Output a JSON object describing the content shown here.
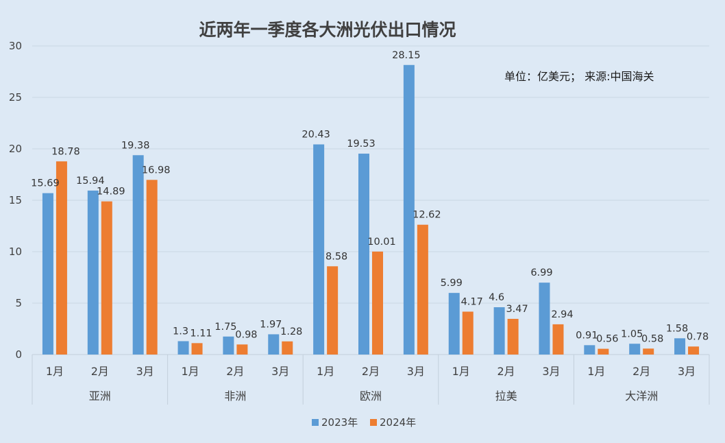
{
  "chart_data": {
    "type": "bar",
    "title": "近两年一季度各大洲光伏出口情况",
    "unit_note": "单位：亿美元；   来源:中国海关",
    "ylim": [
      0,
      30
    ],
    "yticks": [
      0,
      5,
      10,
      15,
      20,
      25,
      30
    ],
    "grid": true,
    "legend_position": "bottom",
    "groups": [
      "亚洲",
      "非洲",
      "欧洲",
      "拉美",
      "大洋洲"
    ],
    "months": [
      "1月",
      "2月",
      "3月"
    ],
    "series": [
      {
        "name": "2023年",
        "color": "#5b9bd5",
        "values": [
          15.69,
          15.94,
          19.38,
          1.3,
          1.75,
          1.97,
          20.43,
          19.53,
          28.15,
          5.99,
          4.6,
          6.99,
          0.91,
          1.05,
          1.58
        ]
      },
      {
        "name": "2024年",
        "color": "#ed7d31",
        "values": [
          18.78,
          14.89,
          16.98,
          1.11,
          0.98,
          1.28,
          8.58,
          10.01,
          12.62,
          4.17,
          3.47,
          2.94,
          0.56,
          0.58,
          0.78
        ]
      }
    ]
  }
}
